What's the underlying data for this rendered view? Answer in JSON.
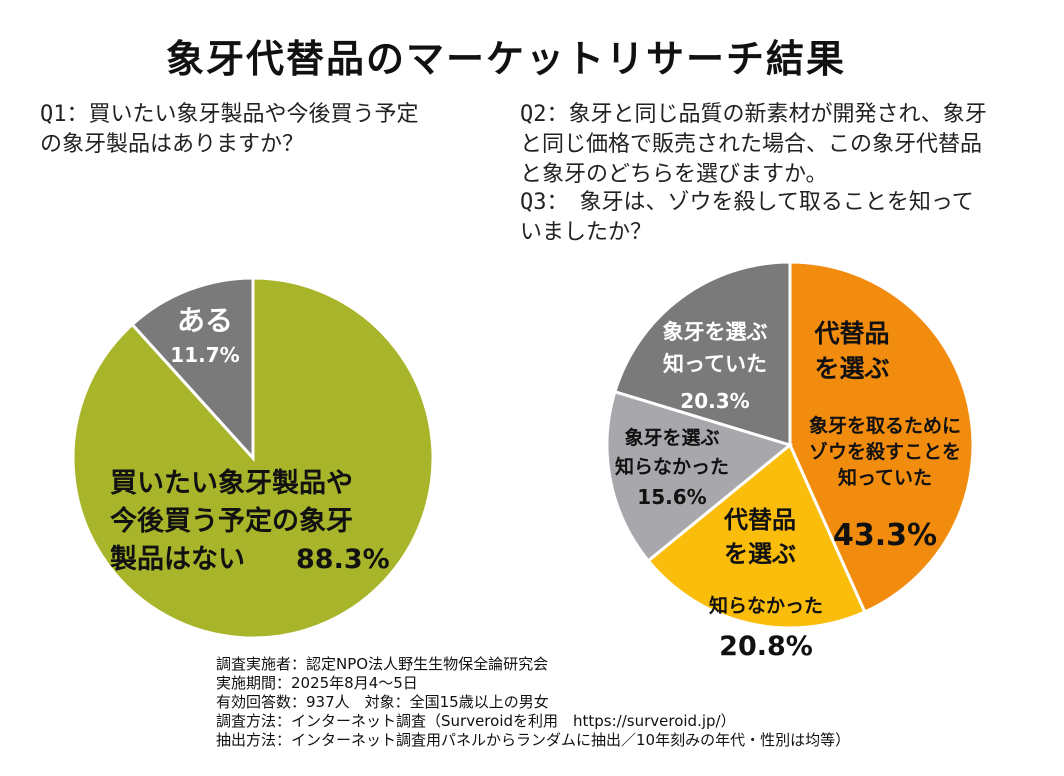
{
  "title": "象牙代替品のマーケットリサーチ結果",
  "questions": {
    "q1": [
      "Q1：買いたい象牙製品や今後買う予定",
      "の象牙製品はありますか？"
    ],
    "q2": [
      "Q2：象牙と同じ品質の新素材が開発され、象牙",
      "と同じ価格で販売された場合、この象牙代替品",
      "と象牙のどちらを選びますか。"
    ],
    "q3": [
      "Q3：　象牙は、ゾウを殺して取ることを知って",
      "いましたか？"
    ]
  },
  "chart_data": [
    {
      "type": "pie",
      "title": "",
      "slices": [
        {
          "label_lines": [
            "買いたい象牙製品や",
            "今後買う予定の象牙",
            "製品はない"
          ],
          "pct_label": "88.3%",
          "value": 88.3,
          "color": "#a8b52a",
          "text_color": "#111111"
        },
        {
          "label_lines": [
            "ある"
          ],
          "pct_label": "11.7%",
          "value": 11.7,
          "color": "#7a7a7a",
          "text_color": "#ffffff"
        }
      ]
    },
    {
      "type": "pie",
      "title": "",
      "slices": [
        {
          "label_lines": [
            "代替品",
            "を選ぶ"
          ],
          "sub_lines": [
            "象牙を取るために",
            "ゾウを殺すことを",
            "知っていた"
          ],
          "pct_label": "43.3%",
          "value": 43.3,
          "color": "#f28c0f",
          "text_color": "#111111"
        },
        {
          "label_lines": [
            "代替品",
            "を選ぶ"
          ],
          "sub_lines": [
            "知らなかった"
          ],
          "pct_label": "20.8%",
          "value": 20.8,
          "color": "#fbbd0b",
          "text_color": "#111111"
        },
        {
          "label_lines": [
            "象牙を選ぶ",
            "知らなかった"
          ],
          "sub_lines": [],
          "pct_label": "15.6%",
          "value": 15.6,
          "color": "#a8a8ac",
          "text_color": "#111111"
        },
        {
          "label_lines": [
            "象牙を選ぶ",
            "知っていた"
          ],
          "sub_lines": [],
          "pct_label": "20.3%",
          "value": 20.3,
          "color": "#7a7a7a",
          "text_color": "#ffffff"
        }
      ]
    }
  ],
  "footer": [
    "調査実施者：認定NPO法人野生生物保全論研究会",
    "実施期間：2025年8月4～5日",
    "有効回答数：937人　対象：全国15歳以上の男女",
    "調査方法：インターネット調査（Surveroidを利用　https://surveroid.jp/）",
    "抽出方法：インターネット調査用パネルからランダムに抽出／10年刻みの年代・性別は均等）"
  ]
}
